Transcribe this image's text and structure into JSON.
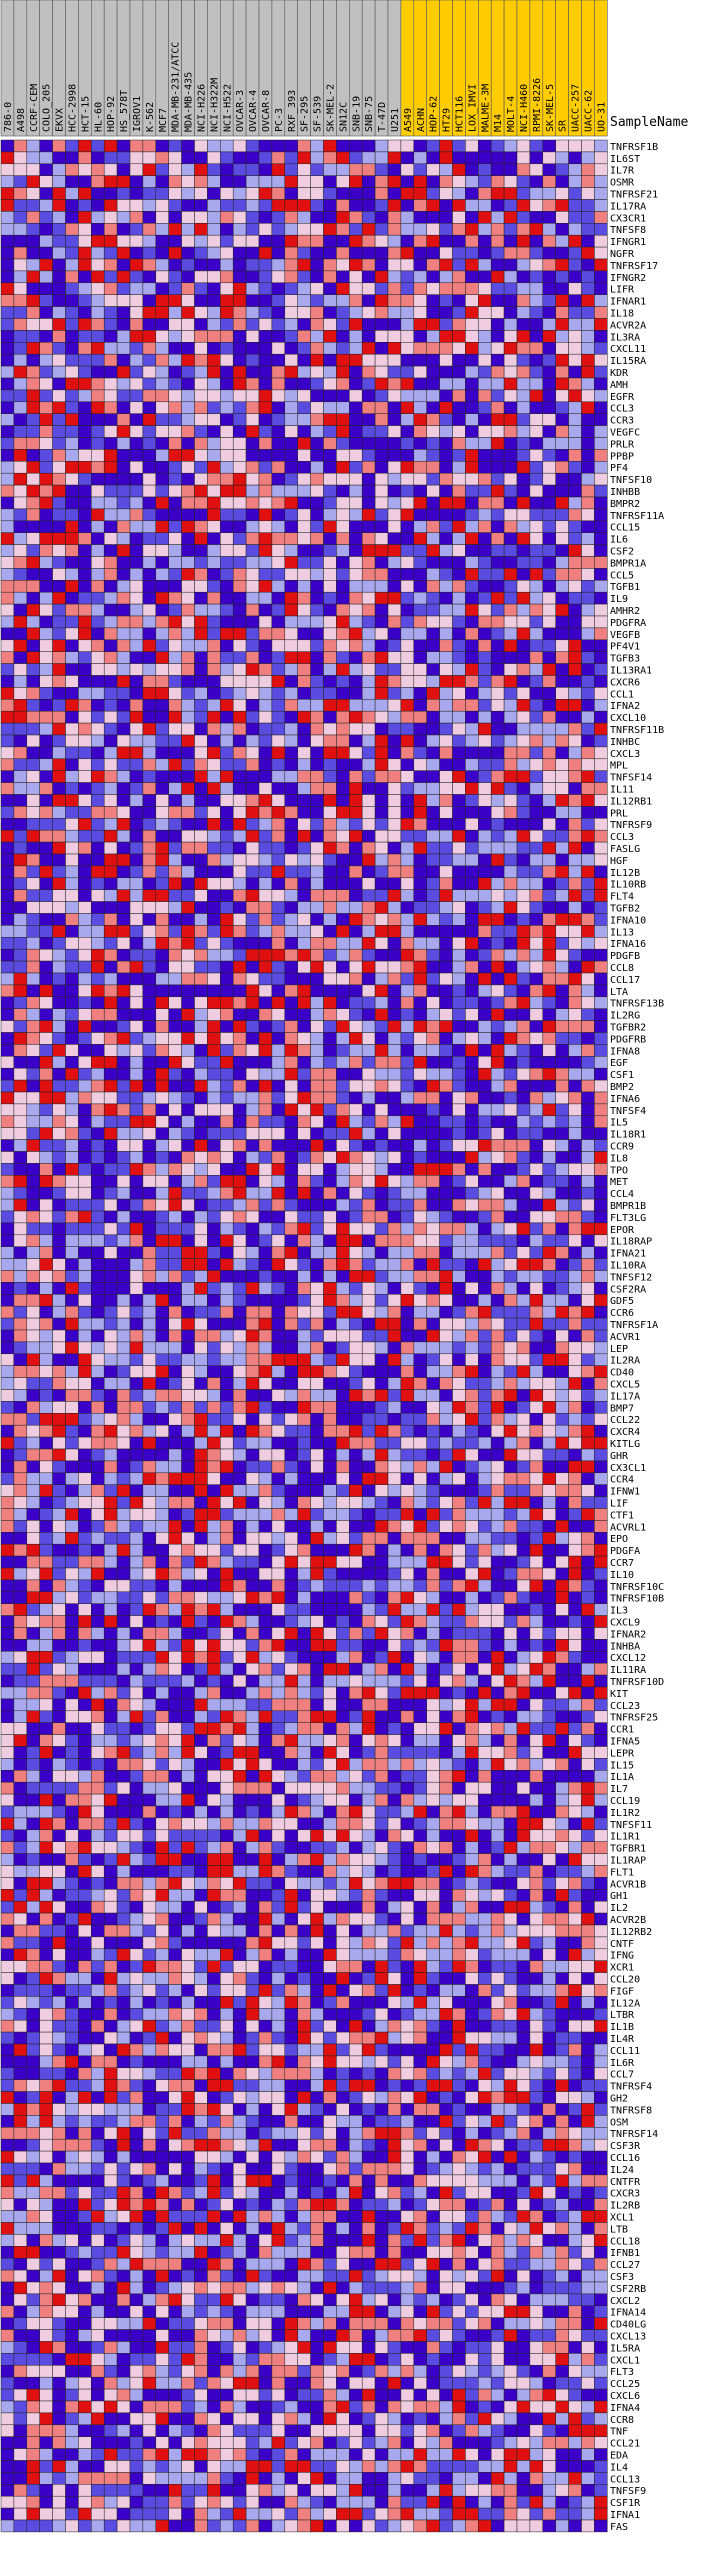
{
  "chart_data": {
    "type": "heatmap",
    "row_header": "SampleName",
    "group_colors": {
      "class_a": "#c0c0c0",
      "class_b": "#ffcc00"
    },
    "colormap": [
      "#3a00c8",
      "#5a4ce0",
      "#a8a8ee",
      "#f0cce0",
      "#f08080",
      "#e01010"
    ],
    "columns": [
      {
        "name": "786-0",
        "group": "class_a"
      },
      {
        "name": "A498",
        "group": "class_a"
      },
      {
        "name": "CCRF-CEM",
        "group": "class_a"
      },
      {
        "name": "COLO_205",
        "group": "class_a"
      },
      {
        "name": "EKVX",
        "group": "class_a"
      },
      {
        "name": "HCC-2998",
        "group": "class_a"
      },
      {
        "name": "HCT-15",
        "group": "class_a"
      },
      {
        "name": "HL-60",
        "group": "class_a"
      },
      {
        "name": "HOP-92",
        "group": "class_a"
      },
      {
        "name": "HS_578T",
        "group": "class_a"
      },
      {
        "name": "IGROV1",
        "group": "class_a"
      },
      {
        "name": "K-562",
        "group": "class_a"
      },
      {
        "name": "MCF7",
        "group": "class_a"
      },
      {
        "name": "MDA-MB-231/ATCC",
        "group": "class_a"
      },
      {
        "name": "MDA-MB-435",
        "group": "class_a"
      },
      {
        "name": "NCI-H226",
        "group": "class_a"
      },
      {
        "name": "NCI-H322M",
        "group": "class_a"
      },
      {
        "name": "NCI-H522",
        "group": "class_a"
      },
      {
        "name": "OVCAR-3",
        "group": "class_a"
      },
      {
        "name": "OVCAR-4",
        "group": "class_a"
      },
      {
        "name": "OVCAR-8",
        "group": "class_a"
      },
      {
        "name": "PC-3",
        "group": "class_a"
      },
      {
        "name": "RXF_393",
        "group": "class_a"
      },
      {
        "name": "SF-295",
        "group": "class_a"
      },
      {
        "name": "SF-539",
        "group": "class_a"
      },
      {
        "name": "SK-MEL-2",
        "group": "class_a"
      },
      {
        "name": "SN12C",
        "group": "class_a"
      },
      {
        "name": "SNB-19",
        "group": "class_a"
      },
      {
        "name": "SNB-75",
        "group": "class_a"
      },
      {
        "name": "T-47D",
        "group": "class_a"
      },
      {
        "name": "U251",
        "group": "class_a"
      },
      {
        "name": "A549",
        "group": "class_b"
      },
      {
        "name": "ACHN",
        "group": "class_b"
      },
      {
        "name": "HOP-62",
        "group": "class_b"
      },
      {
        "name": "HT29",
        "group": "class_b"
      },
      {
        "name": "HCT116",
        "group": "class_b"
      },
      {
        "name": "LOX_IMVI",
        "group": "class_b"
      },
      {
        "name": "MALME-3M",
        "group": "class_b"
      },
      {
        "name": "M14",
        "group": "class_b"
      },
      {
        "name": "MOLT-4",
        "group": "class_b"
      },
      {
        "name": "NCI-H460",
        "group": "class_b"
      },
      {
        "name": "RPMI-8226",
        "group": "class_b"
      },
      {
        "name": "SK-MEL-5",
        "group": "class_b"
      },
      {
        "name": "SR",
        "group": "class_b"
      },
      {
        "name": "UACC-257",
        "group": "class_b"
      },
      {
        "name": "UACC-62",
        "group": "class_b"
      },
      {
        "name": "UO-31",
        "group": "class_b"
      }
    ],
    "rows": [
      "TNFRSF1B",
      "IL6ST",
      "IL7R",
      "OSMR",
      "TNFRSF21",
      "IL17RA",
      "CX3CR1",
      "TNFSF8",
      "IFNGR1",
      "NGFR",
      "TNFRSF17",
      "IFNGR2",
      "LIFR",
      "IFNAR1",
      "IL18",
      "ACVR2A",
      "IL3RA",
      "CXCL11",
      "IL15RA",
      "KDR",
      "AMH",
      "EGFR",
      "CCL3",
      "CCR3",
      "VEGFC",
      "PRLR",
      "PPBP",
      "PF4",
      "TNFSF10",
      "INHBB",
      "BMPR2",
      "TNFRSF11A",
      "CCL15",
      "IL6",
      "CSF2",
      "BMPR1A",
      "CCL5",
      "TGFB1",
      "IL9",
      "AMHR2",
      "PDGFRA",
      "VEGFB",
      "PF4V1",
      "TGFB3",
      "IL13RA1",
      "CXCR6",
      "CCL1",
      "IFNA2",
      "CXCL10",
      "TNFRSF11B",
      "INHBC",
      "CXCL3",
      "MPL",
      "TNFSF14",
      "IL11",
      "IL12RB1",
      "PRL",
      "TNFRSF9",
      "CCL3",
      "FASLG",
      "HGF",
      "IL12B",
      "IL10RB",
      "FLT4",
      "TGFB2",
      "IFNA10",
      "IL13",
      "IFNA16",
      "PDGFB",
      "CCL8",
      "CCL17",
      "LTA",
      "TNFRSF13B",
      "IL2RG",
      "TGFBR2",
      "PDGFRB",
      "IFNA8",
      "EGF",
      "CSF1",
      "BMP2",
      "IFNA6",
      "TNFSF4",
      "IL5",
      "IL18R1",
      "CCR9",
      "IL8",
      "TPO",
      "MET",
      "CCL4",
      "BMPR1B",
      "FLT3LG",
      "EPOR",
      "IL18RAP",
      "IFNA21",
      "IL10RA",
      "TNFSF12",
      "CSF2RA",
      "GDF5",
      "CCR6",
      "TNFRSF1A",
      "ACVR1",
      "LEP",
      "IL2RA",
      "CD40",
      "CXCL5",
      "IL17A",
      "BMP7",
      "CCL22",
      "CXCR4",
      "KITLG",
      "GHR",
      "CX3CL1",
      "CCR4",
      "IFNW1",
      "LIF",
      "CTF1",
      "ACVRL1",
      "EPO",
      "PDGFA",
      "CCR7",
      "IL10",
      "TNFRSF10C",
      "TNFRSF10B",
      "IL3",
      "CXCL9",
      "IFNAR2",
      "INHBA",
      "CXCL12",
      "IL11RA",
      "TNFRSF10D",
      "KIT",
      "CCL23",
      "TNFRSF25",
      "CCR1",
      "IFNA5",
      "LEPR",
      "IL15",
      "IL1A",
      "IL7",
      "CCL19",
      "IL1R2",
      "TNFSF11",
      "IL1R1",
      "TGFBR1",
      "IL1RAP",
      "FLT1",
      "ACVR1B",
      "GH1",
      "IL2",
      "ACVR2B",
      "IL12RB2",
      "CNTF",
      "IFNG",
      "XCR1",
      "CCL20",
      "FIGF",
      "IL12A",
      "LTBR",
      "IL1B",
      "IL4R",
      "CCL11",
      "IL6R",
      "CCL7",
      "TNFRSF4",
      "GH2",
      "TNFRSF8",
      "OSM",
      "TNFRSF14",
      "CSF3R",
      "CCL16",
      "IL24",
      "CNTFR",
      "CXCR3",
      "IL2RB",
      "XCL1",
      "LTB",
      "CCL18",
      "IFNB1",
      "CCL27",
      "CSF3",
      "CSF2RB",
      "CXCL2",
      "IFNA14",
      "CD40LG",
      "CXCL13",
      "IL5RA",
      "CXCL1",
      "FLT3",
      "CCL25",
      "CXCL6",
      "IFNA4",
      "CCR8",
      "TNF",
      "CCL21",
      "EDA",
      "IL4",
      "CCL13",
      "TNFSF9",
      "CSF1R",
      "IFNA1",
      "FAS"
    ]
  }
}
